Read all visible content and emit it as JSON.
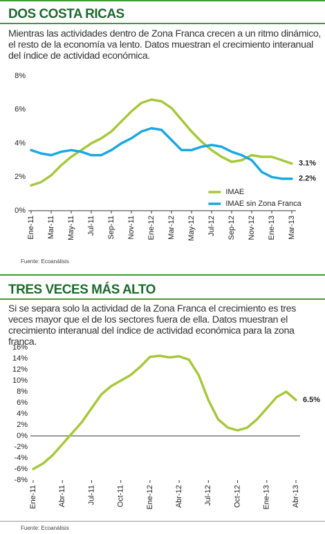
{
  "chart_data": [
    {
      "type": "line",
      "title": "DOS COSTA RICAS",
      "subtitle": "Mientras las actividades dentro de Zona Franca crecen a un ritmo dinámico, el resto de la economía va lento. Datos muestran el crecimiento interanual del índice de actividad económica.",
      "source": "Fuente: Ecoanálisis",
      "categories": [
        "Ene-11",
        null,
        "Mar-11",
        null,
        "May-11",
        null,
        "Jul-11",
        null,
        "Sep-11",
        null,
        "Nov-11",
        null,
        "Ene-12",
        null,
        "Mar-12",
        null,
        "May-12",
        null,
        "Jul-12",
        null,
        "Sep-12",
        null,
        "Nov-12",
        null,
        "Ene-13",
        null,
        "Mar-13"
      ],
      "series": [
        {
          "name": "IMAE",
          "color": "#a6c83c",
          "values": [
            1.5,
            1.7,
            2.1,
            2.7,
            3.2,
            3.6,
            4.0,
            4.3,
            4.7,
            5.3,
            5.9,
            6.4,
            6.6,
            6.5,
            6.1,
            5.4,
            4.7,
            4.1,
            3.6,
            3.2,
            2.9,
            3.0,
            3.3,
            3.2,
            3.2,
            3.0,
            2.8
          ]
        },
        {
          "name": "IMAE sin Zona Franca",
          "color": "#1aa8e0",
          "values": [
            3.6,
            3.4,
            3.3,
            3.5,
            3.6,
            3.5,
            3.3,
            3.3,
            3.6,
            4.0,
            4.3,
            4.7,
            4.9,
            4.8,
            4.2,
            3.6,
            3.6,
            3.8,
            3.9,
            3.8,
            3.5,
            3.3,
            3.0,
            2.3,
            2.0,
            1.9,
            1.9
          ]
        }
      ],
      "annotations": [
        {
          "text": "3.1%",
          "color": "#d41f4e"
        },
        {
          "text": "2.2%",
          "color": "#222222"
        }
      ],
      "ylim": [
        0,
        8
      ],
      "yticks": [
        {
          "value": 0,
          "label": "0%"
        },
        {
          "value": 2,
          "label": "2%"
        },
        {
          "value": 4,
          "label": "4%"
        },
        {
          "value": 6,
          "label": "6%"
        },
        {
          "value": 8,
          "label": "8%"
        }
      ],
      "legend": "lower right",
      "grid": false
    },
    {
      "type": "line",
      "title": "TRES VECES MÁS ALTO",
      "subtitle": "Si se separa solo la actividad de la Zona Franca el crecimiento es tres veces mayor que el de los sectores fuera de ella. Datos muestran el crecimiento interanual del índice de actividad económica para la zona franca.",
      "source": "Fuente: Ecoanálisis",
      "categories": [
        "Ene-11",
        null,
        null,
        "Abr-11",
        null,
        null,
        "Jul-11",
        null,
        null,
        "Oct-11",
        null,
        null,
        "Ene-12",
        null,
        null,
        "Abr-12",
        null,
        null,
        "Jul-12",
        null,
        null,
        "Oct-12",
        null,
        null,
        "Ene-13",
        null,
        null,
        "Abr-13"
      ],
      "series": [
        {
          "name": "Zona Franca",
          "color": "#a6c83c",
          "values": [
            -6.0,
            -5.0,
            -3.5,
            -1.5,
            0.5,
            2.5,
            5.0,
            7.5,
            9.0,
            10.0,
            11.0,
            12.5,
            14.3,
            14.5,
            14.2,
            14.4,
            13.8,
            11.0,
            6.5,
            3.0,
            1.5,
            1.0,
            1.5,
            3.0,
            5.0,
            7.0,
            8.0,
            6.5
          ]
        }
      ],
      "annotations": [
        {
          "text": "6.5%",
          "color": "#d41f4e"
        }
      ],
      "ylim": [
        -8,
        16
      ],
      "yticks": [
        {
          "value": -8,
          "label": "-8%"
        },
        {
          "value": -6,
          "label": "-6%"
        },
        {
          "value": -4,
          "label": "-4%"
        },
        {
          "value": -2,
          "label": "-2%"
        },
        {
          "value": 0,
          "label": "0%"
        },
        {
          "value": 2,
          "label": "2%"
        },
        {
          "value": 4,
          "label": "4%"
        },
        {
          "value": 6,
          "label": "6%"
        },
        {
          "value": 8,
          "label": "8%"
        },
        {
          "value": 10,
          "label": "10%"
        },
        {
          "value": 12,
          "label": "12%"
        },
        {
          "value": 14,
          "label": "14%"
        },
        {
          "value": 16,
          "label": "16%"
        }
      ],
      "grid": false
    }
  ]
}
